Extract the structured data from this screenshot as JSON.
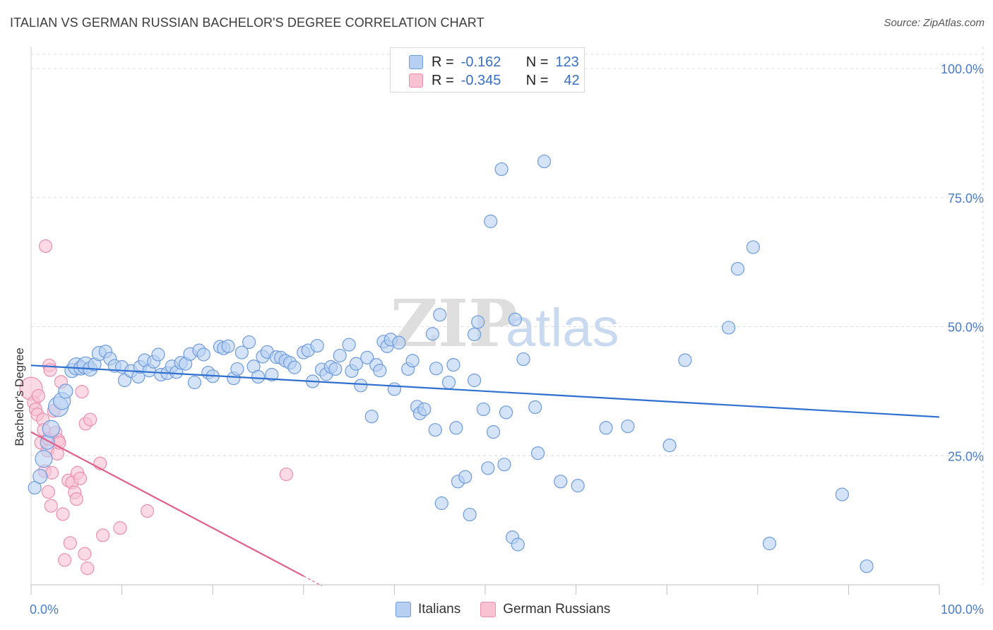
{
  "title": "ITALIAN VS GERMAN RUSSIAN BACHELOR'S DEGREE CORRELATION CHART",
  "source": "Source: ZipAtlas.com",
  "watermark": {
    "zip": "ZIP",
    "atlas": "atlas"
  },
  "colors": {
    "italians_fill": "#b7d0f2",
    "italians_stroke": "#6d9bdc",
    "italians_line": "#2f6fcf",
    "german_fill": "#f8c2d3",
    "german_stroke": "#ec8fae",
    "german_line": "#e0608d",
    "grid": "#dddddd",
    "axis_text": "#4a7cc9"
  },
  "legend": {
    "rows": [
      {
        "r_label": "R =",
        "r_value": "-0.162",
        "n_label": "N =",
        "n_value": "123"
      },
      {
        "r_label": "R =",
        "r_value": "-0.345",
        "n_label": "N =",
        "n_value": "42"
      }
    ]
  },
  "bottom_legend": [
    "Italians",
    "German Russians"
  ],
  "chart_data": {
    "type": "scatter",
    "xlabel": "",
    "ylabel": "Bachelor's Degree",
    "xlim": [
      0,
      100
    ],
    "ylim": [
      0,
      100
    ],
    "x_tick_labels": [
      "0.0%",
      "100.0%"
    ],
    "y_tick_labels": [
      "100.0%",
      "75.0%",
      "50.0%",
      "25.0%"
    ],
    "y_tick_values": [
      100,
      75,
      50,
      25
    ],
    "series": [
      {
        "name": "Italians",
        "R": -0.162,
        "N": 123,
        "trend": {
          "x0": 0,
          "y0": 42.5,
          "x1": 100,
          "y1": 32.5
        },
        "points": [
          [
            0.4,
            18.8,
            9
          ],
          [
            1.4,
            24.4,
            12
          ],
          [
            1.0,
            21.0,
            10
          ],
          [
            1.8,
            27.6,
            10
          ],
          [
            2.2,
            30.2,
            12
          ],
          [
            3.0,
            34.5,
            14
          ],
          [
            3.4,
            35.6,
            12
          ],
          [
            3.8,
            37.5,
            10
          ],
          [
            4.5,
            41.5,
            10
          ],
          [
            5.0,
            42.3,
            12
          ],
          [
            5.5,
            42.0,
            10
          ],
          [
            6.0,
            42.5,
            12
          ],
          [
            6.5,
            41.8,
            10
          ],
          [
            7.0,
            42.7,
            9
          ],
          [
            7.5,
            44.8,
            10
          ],
          [
            8.2,
            45.2,
            9
          ],
          [
            8.7,
            43.8,
            9
          ],
          [
            9.2,
            42.4,
            9
          ],
          [
            10.0,
            42.2,
            9
          ],
          [
            10.3,
            39.6,
            9
          ],
          [
            11.0,
            41.4,
            9
          ],
          [
            11.8,
            40.3,
            9
          ],
          [
            12.0,
            42.2,
            9
          ],
          [
            12.5,
            43.5,
            9
          ],
          [
            13.0,
            41.5,
            9
          ],
          [
            13.5,
            43.2,
            9
          ],
          [
            14.0,
            44.6,
            9
          ],
          [
            14.3,
            40.7,
            9
          ],
          [
            15.0,
            41.0,
            9
          ],
          [
            15.5,
            42.3,
            9
          ],
          [
            16.0,
            41.2,
            9
          ],
          [
            16.5,
            43.0,
            9
          ],
          [
            17.0,
            42.8,
            9
          ],
          [
            17.5,
            44.7,
            9
          ],
          [
            18.0,
            39.2,
            9
          ],
          [
            18.5,
            45.4,
            9
          ],
          [
            19.0,
            44.6,
            9
          ],
          [
            19.5,
            41.1,
            9
          ],
          [
            20.0,
            40.4,
            9
          ],
          [
            20.8,
            46.1,
            9
          ],
          [
            21.2,
            45.8,
            9
          ],
          [
            21.7,
            46.2,
            9
          ],
          [
            22.3,
            40.0,
            9
          ],
          [
            22.7,
            41.8,
            9
          ],
          [
            23.2,
            45.0,
            9
          ],
          [
            24.0,
            47.0,
            9
          ],
          [
            24.5,
            42.3,
            9
          ],
          [
            25.0,
            40.3,
            9
          ],
          [
            25.5,
            44.2,
            9
          ],
          [
            26.0,
            45.1,
            9
          ],
          [
            26.5,
            40.7,
            9
          ],
          [
            27.0,
            44.1,
            9
          ],
          [
            27.5,
            44.0,
            9
          ],
          [
            28.0,
            43.4,
            9
          ],
          [
            28.5,
            43.0,
            9
          ],
          [
            29.0,
            42.1,
            9
          ],
          [
            30.0,
            45.0,
            9
          ],
          [
            30.5,
            45.4,
            9
          ],
          [
            31.0,
            39.4,
            9
          ],
          [
            31.5,
            46.3,
            9
          ],
          [
            32.0,
            41.7,
            9
          ],
          [
            32.5,
            40.8,
            9
          ],
          [
            33.0,
            42.2,
            9
          ],
          [
            33.5,
            41.8,
            9
          ],
          [
            34.0,
            44.4,
            9
          ],
          [
            35.0,
            46.5,
            9
          ],
          [
            35.3,
            41.4,
            9
          ],
          [
            35.8,
            42.8,
            9
          ],
          [
            36.3,
            38.6,
            9
          ],
          [
            37.0,
            44.0,
            9
          ],
          [
            37.5,
            32.6,
            9
          ],
          [
            38.0,
            42.6,
            9
          ],
          [
            38.4,
            41.5,
            9
          ],
          [
            38.8,
            47.1,
            9
          ],
          [
            39.2,
            46.2,
            9
          ],
          [
            39.6,
            47.5,
            9
          ],
          [
            40.0,
            37.9,
            9
          ],
          [
            40.5,
            46.9,
            9
          ],
          [
            41.5,
            41.8,
            9
          ],
          [
            42.0,
            43.4,
            9
          ],
          [
            42.5,
            34.5,
            9
          ],
          [
            42.8,
            33.2,
            9
          ],
          [
            43.3,
            34.0,
            9
          ],
          [
            44.2,
            48.6,
            9
          ],
          [
            44.6,
            41.9,
            9
          ],
          [
            44.5,
            30.0,
            9
          ],
          [
            45.0,
            52.3,
            9
          ],
          [
            45.2,
            15.8,
            9
          ],
          [
            46.0,
            39.2,
            9
          ],
          [
            46.5,
            42.6,
            9
          ],
          [
            46.8,
            30.4,
            9
          ],
          [
            47.0,
            20.0,
            9
          ],
          [
            47.8,
            20.9,
            9
          ],
          [
            48.3,
            13.6,
            9
          ],
          [
            48.8,
            48.5,
            9
          ],
          [
            48.8,
            39.6,
            9
          ],
          [
            49.2,
            50.9,
            9
          ],
          [
            49.8,
            34.0,
            9
          ],
          [
            50.3,
            22.6,
            9
          ],
          [
            50.6,
            70.4,
            9
          ],
          [
            50.9,
            29.6,
            9
          ],
          [
            51.8,
            80.5,
            9
          ],
          [
            52.1,
            23.3,
            9
          ],
          [
            52.3,
            33.4,
            9
          ],
          [
            53.0,
            9.2,
            9
          ],
          [
            53.6,
            7.8,
            9
          ],
          [
            53.3,
            51.4,
            9
          ],
          [
            54.2,
            43.7,
            9
          ],
          [
            55.5,
            34.4,
            9
          ],
          [
            56.5,
            82.0,
            9
          ],
          [
            55.8,
            25.5,
            9
          ],
          [
            58.3,
            20.0,
            9
          ],
          [
            60.2,
            19.2,
            9
          ],
          [
            63.3,
            30.4,
            9
          ],
          [
            65.7,
            30.7,
            9
          ],
          [
            70.3,
            27.0,
            9
          ],
          [
            72.0,
            43.5,
            9
          ],
          [
            76.8,
            49.8,
            9
          ],
          [
            77.8,
            61.2,
            9
          ],
          [
            79.5,
            65.4,
            9
          ],
          [
            81.3,
            8.0,
            9
          ],
          [
            89.3,
            17.5,
            9
          ],
          [
            92.0,
            3.6,
            9
          ]
        ]
      },
      {
        "name": "German Russians",
        "R": -0.345,
        "N": 42,
        "trend": {
          "x0": 0,
          "y0": 29.6,
          "x1": 30,
          "y1": 1.7
        },
        "trend_dashed": {
          "x0": 30,
          "y0": 1.7,
          "x1": 32,
          "y1": -0.2
        },
        "points": [
          [
            0.0,
            38.0,
            16
          ],
          [
            0.3,
            35.3,
            9
          ],
          [
            0.5,
            34.0,
            9
          ],
          [
            0.7,
            33.0,
            9
          ],
          [
            0.8,
            36.6,
            9
          ],
          [
            1.1,
            27.5,
            9
          ],
          [
            1.3,
            32.0,
            9
          ],
          [
            1.4,
            30.0,
            9
          ],
          [
            1.5,
            22.0,
            9
          ],
          [
            1.6,
            65.6,
            9
          ],
          [
            1.8,
            26.0,
            9
          ],
          [
            1.9,
            28.3,
            9
          ],
          [
            1.9,
            18.0,
            9
          ],
          [
            2.0,
            42.5,
            9
          ],
          [
            2.1,
            41.6,
            9
          ],
          [
            2.2,
            15.3,
            9
          ],
          [
            2.3,
            21.7,
            9
          ],
          [
            2.5,
            33.7,
            9
          ],
          [
            2.7,
            29.5,
            9
          ],
          [
            2.9,
            25.4,
            9
          ],
          [
            3.0,
            28.0,
            9
          ],
          [
            3.1,
            27.5,
            9
          ],
          [
            3.3,
            39.3,
            9
          ],
          [
            3.5,
            13.7,
            9
          ],
          [
            3.7,
            4.8,
            9
          ],
          [
            4.1,
            20.2,
            9
          ],
          [
            4.3,
            8.1,
            9
          ],
          [
            4.5,
            19.8,
            9
          ],
          [
            4.8,
            17.9,
            9
          ],
          [
            5.0,
            16.6,
            9
          ],
          [
            5.1,
            21.7,
            9
          ],
          [
            5.4,
            20.6,
            9
          ],
          [
            5.6,
            37.4,
            9
          ],
          [
            5.9,
            6.0,
            9
          ],
          [
            6.0,
            31.2,
            9
          ],
          [
            6.2,
            3.2,
            9
          ],
          [
            6.5,
            32.0,
            9
          ],
          [
            7.6,
            23.5,
            9
          ],
          [
            7.9,
            9.6,
            9
          ],
          [
            9.8,
            11.0,
            9
          ],
          [
            12.8,
            14.3,
            9
          ],
          [
            28.1,
            21.4,
            9
          ]
        ]
      }
    ],
    "grid": true
  }
}
